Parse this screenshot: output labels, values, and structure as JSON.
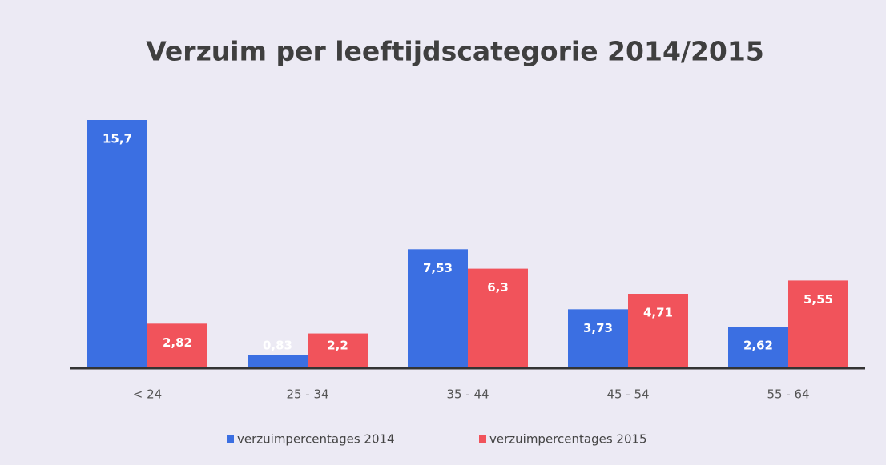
{
  "chart_data": {
    "type": "bar",
    "title": "Verzuim per leeftijdscategorie 2014/2015",
    "categories": [
      "< 24",
      "25 - 34",
      "35 - 44",
      "45 - 54",
      "55 - 64"
    ],
    "series": [
      {
        "name": "verzuimpercentages 2014",
        "color": "#3b6fe2",
        "values": [
          15.7,
          0.83,
          7.53,
          3.73,
          2.62
        ],
        "value_labels": [
          "15,7",
          "0,83",
          "7,53",
          "3,73",
          "2,62"
        ]
      },
      {
        "name": "verzuimpercentages 2015",
        "color": "#f1535b",
        "values": [
          2.82,
          2.2,
          6.3,
          4.71,
          5.55
        ],
        "value_labels": [
          "2,82",
          "2,2",
          "6,3",
          "4,71",
          "5,55"
        ]
      }
    ],
    "legend": "bottom"
  }
}
